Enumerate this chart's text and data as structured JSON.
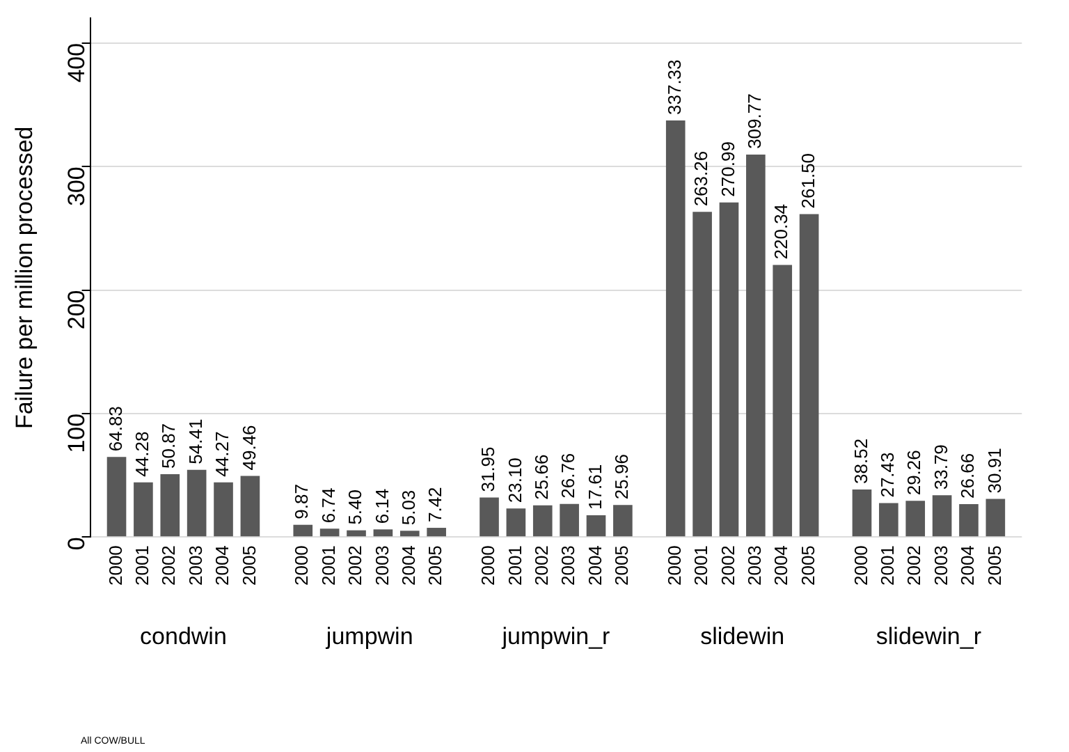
{
  "chart_data": {
    "type": "bar",
    "ylabel": "Failure per million processed",
    "categories": [
      "condwin",
      "jumpwin",
      "jumpwin_r",
      "slidewin",
      "slidewin_r"
    ],
    "series": [
      {
        "name": "2000",
        "color": "#595959",
        "values": [
          64.83,
          9.87,
          31.95,
          337.33,
          38.52
        ],
        "value_labels": [
          "64.83",
          "9.87",
          "31.95",
          "337.33",
          "38.52"
        ]
      },
      {
        "name": "2001",
        "color": "#595959",
        "values": [
          44.28,
          6.74,
          23.1,
          263.26,
          27.43
        ],
        "value_labels": [
          "44.28",
          "6.74",
          "23.10",
          "263.26",
          "27.43"
        ]
      },
      {
        "name": "2002",
        "color": "#595959",
        "values": [
          50.87,
          5.4,
          25.66,
          270.99,
          29.26
        ],
        "value_labels": [
          "50.87",
          "5.40",
          "25.66",
          "270.99",
          "29.26"
        ]
      },
      {
        "name": "2003",
        "color": "#595959",
        "values": [
          54.41,
          6.14,
          26.76,
          309.77,
          33.79
        ],
        "value_labels": [
          "54.41",
          "6.14",
          "26.76",
          "309.77",
          "33.79"
        ]
      },
      {
        "name": "2004",
        "color": "#595959",
        "values": [
          44.27,
          5.03,
          17.61,
          220.34,
          26.66
        ],
        "value_labels": [
          "44.27",
          "5.03",
          "17.61",
          "220.34",
          "26.66"
        ]
      },
      {
        "name": "2005",
        "color": "#595959",
        "values": [
          49.46,
          7.42,
          25.96,
          261.5,
          30.91
        ],
        "value_labels": [
          "49.46",
          "7.42",
          "25.96",
          "261.50",
          "30.91"
        ]
      }
    ],
    "ylim": [
      0,
      420
    ],
    "yticks": [
      0,
      100,
      200,
      300,
      400
    ],
    "grid": "y",
    "legend": false,
    "annotations": [
      "All COW/BULL"
    ]
  }
}
